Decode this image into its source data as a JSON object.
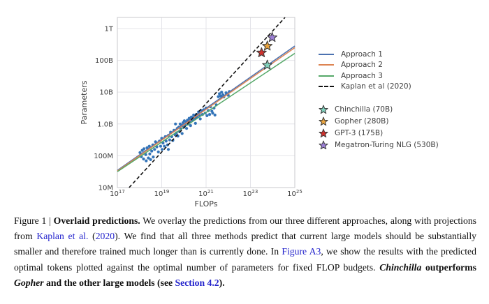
{
  "chart_data": {
    "type": "scatter",
    "title": "",
    "xlabel": "FLOPs",
    "ylabel": "Parameters",
    "x_scale": "log10",
    "y_scale": "log10",
    "xlim_log10": [
      17,
      25
    ],
    "ylim_log10": [
      7,
      12.35
    ],
    "grid": true,
    "legend_position": "right",
    "x_ticks": [
      {
        "log10": 17,
        "base": "10",
        "exp": "17"
      },
      {
        "log10": 19,
        "base": "10",
        "exp": "19"
      },
      {
        "log10": 21,
        "base": "10",
        "exp": "21"
      },
      {
        "log10": 23,
        "base": "10",
        "exp": "23"
      },
      {
        "log10": 25,
        "base": "10",
        "exp": "25"
      }
    ],
    "y_ticks": [
      {
        "log10": 12,
        "label": "1T"
      },
      {
        "log10": 11,
        "label": "100B"
      },
      {
        "log10": 10,
        "label": "10B"
      },
      {
        "log10": 9,
        "label": "1.0B"
      },
      {
        "log10": 8,
        "label": "100M"
      },
      {
        "log10": 7,
        "label": "10M"
      }
    ],
    "series": [
      {
        "name": "Approach 1",
        "type": "line",
        "color": "#4c72b0",
        "points_log10": [
          [
            17,
            7.54
          ],
          [
            25,
            11.45
          ]
        ]
      },
      {
        "name": "Approach 2",
        "type": "line",
        "color": "#dd8452",
        "points_log10": [
          [
            17,
            7.52
          ],
          [
            25,
            11.4
          ]
        ]
      },
      {
        "name": "Approach 3",
        "type": "line",
        "color": "#55a868",
        "points_log10": [
          [
            17,
            7.5
          ],
          [
            25,
            11.22
          ]
        ]
      },
      {
        "name": "Kaplan et al (2020)",
        "type": "dashed-line",
        "color": "#111111",
        "points_log10": [
          [
            17.53,
            7.0
          ],
          [
            24.56,
            12.35
          ]
        ]
      },
      {
        "name": "trained models",
        "type": "scatter",
        "color": "#3374b8",
        "points_log10": [
          [
            18.02,
            8.1
          ],
          [
            18.08,
            7.97
          ],
          [
            18.12,
            8.17
          ],
          [
            18.18,
            7.9
          ],
          [
            18.2,
            8.22
          ],
          [
            18.28,
            8.04
          ],
          [
            18.3,
            7.84
          ],
          [
            18.34,
            8.25
          ],
          [
            18.4,
            7.93
          ],
          [
            18.44,
            8.3
          ],
          [
            18.46,
            8.06
          ],
          [
            18.5,
            7.88
          ],
          [
            18.55,
            8.15
          ],
          [
            18.6,
            8.34
          ],
          [
            18.62,
            7.96
          ],
          [
            18.68,
            8.2
          ],
          [
            18.72,
            8.44
          ],
          [
            18.78,
            8.28
          ],
          [
            18.85,
            8.12
          ],
          [
            18.9,
            8.46
          ],
          [
            18.95,
            8.3
          ],
          [
            19.0,
            8.55
          ],
          [
            19.02,
            8.2
          ],
          [
            19.06,
            8.4
          ],
          [
            19.12,
            8.3
          ],
          [
            19.16,
            8.6
          ],
          [
            19.2,
            8.46
          ],
          [
            19.26,
            8.34
          ],
          [
            19.3,
            8.64
          ],
          [
            19.3,
            8.2
          ],
          [
            19.36,
            8.5
          ],
          [
            19.4,
            8.74
          ],
          [
            19.45,
            8.6
          ],
          [
            19.5,
            8.48
          ],
          [
            19.55,
            8.8
          ],
          [
            19.6,
            8.66
          ],
          [
            19.62,
            9.0
          ],
          [
            19.66,
            8.72
          ],
          [
            19.7,
            8.86
          ],
          [
            19.73,
            8.62
          ],
          [
            19.77,
            8.9
          ],
          [
            19.8,
            8.76
          ],
          [
            19.83,
            9.0
          ],
          [
            19.86,
            8.85
          ],
          [
            19.9,
            8.95
          ],
          [
            19.92,
            8.7
          ],
          [
            19.96,
            9.04
          ],
          [
            20.0,
            8.9
          ],
          [
            20.02,
            9.1
          ],
          [
            20.06,
            8.98
          ],
          [
            20.1,
            9.06
          ],
          [
            20.12,
            8.86
          ],
          [
            20.16,
            9.12
          ],
          [
            20.2,
            9.0
          ],
          [
            20.24,
            9.18
          ],
          [
            20.28,
            9.08
          ],
          [
            20.3,
            8.95
          ],
          [
            20.34,
            9.22
          ],
          [
            20.4,
            9.12
          ],
          [
            20.44,
            9.28
          ],
          [
            20.5,
            9.18
          ],
          [
            20.52,
            9.02
          ],
          [
            20.56,
            9.3
          ],
          [
            20.6,
            9.22
          ],
          [
            20.66,
            9.38
          ],
          [
            20.7,
            9.28
          ],
          [
            20.74,
            9.16
          ],
          [
            20.8,
            9.42
          ],
          [
            20.84,
            9.3
          ],
          [
            20.9,
            9.45
          ],
          [
            20.96,
            9.34
          ],
          [
            21.0,
            9.5
          ],
          [
            21.04,
            9.26
          ],
          [
            21.1,
            9.42
          ],
          [
            21.16,
            9.3
          ],
          [
            21.2,
            9.54
          ],
          [
            21.26,
            9.4
          ],
          [
            21.3,
            9.34
          ],
          [
            21.36,
            9.5
          ],
          [
            21.4,
            9.28
          ],
          [
            21.46,
            9.6
          ],
          [
            21.55,
            9.86
          ],
          [
            21.6,
            9.95
          ],
          [
            21.66,
            9.88
          ],
          [
            21.7,
            10.0
          ],
          [
            21.76,
            9.92
          ],
          [
            21.8,
            9.85
          ],
          [
            21.9,
            9.98
          ],
          [
            22.0,
            9.9
          ],
          [
            22.05,
            10.02
          ]
        ]
      }
    ],
    "markers": [
      {
        "name": "Chinchilla (70B)",
        "color": "#7fd0bc",
        "log10": [
          23.76,
          10.85
        ]
      },
      {
        "name": "Gopher (280B)",
        "color": "#e8a33e",
        "log10": [
          23.76,
          11.45
        ]
      },
      {
        "name": "GPT-3 (175B)",
        "color": "#d0312d",
        "log10": [
          23.5,
          11.24
        ]
      },
      {
        "name": "Megatron-Turing NLG (530B)",
        "color": "#9c7fd6",
        "log10": [
          23.98,
          11.72
        ]
      }
    ]
  },
  "legend": {
    "line_items": [
      {
        "label": "Approach 1",
        "color": "#4c72b0",
        "dash": false
      },
      {
        "label": "Approach 2",
        "color": "#dd8452",
        "dash": false
      },
      {
        "label": "Approach 3",
        "color": "#55a868",
        "dash": false
      },
      {
        "label": "Kaplan et al (2020)",
        "color": "#111111",
        "dash": true
      }
    ],
    "star_items": [
      {
        "label": "Chinchilla (70B)",
        "color": "#7fd0bc"
      },
      {
        "label": "Gopher (280B)",
        "color": "#e8a33e"
      },
      {
        "label": "GPT-3 (175B)",
        "color": "#d0312d"
      },
      {
        "label": "Megatron-Turing NLG (530B)",
        "color": "#9c7fd6"
      }
    ]
  },
  "caption": {
    "runs": [
      {
        "t": "Figure 1 | ",
        "s": "r"
      },
      {
        "t": "Overlaid predictions.",
        "s": "b"
      },
      {
        "t": "  We overlay the predictions from our three different approaches, along with projections from ",
        "s": "r"
      },
      {
        "t": "Kaplan et al.",
        "s": "lk"
      },
      {
        "t": " (",
        "s": "r"
      },
      {
        "t": "2020",
        "s": "lk"
      },
      {
        "t": "). We find that all three methods predict that current large models should be substantially smaller and therefore trained much longer than is currently done. In ",
        "s": "r"
      },
      {
        "t": "Figure A3",
        "s": "lk"
      },
      {
        "t": ", we show the results with the predicted optimal tokens plotted against the optimal number of parameters for fixed FLOP budgets. ",
        "s": "r"
      },
      {
        "t": "Chinchilla",
        "s": "bi"
      },
      {
        "t": " outperforms ",
        "s": "b"
      },
      {
        "t": "Gopher",
        "s": "bi"
      },
      {
        "t": " and the other large models (see ",
        "s": "b"
      },
      {
        "t": "Section 4.2",
        "s": "lkb"
      },
      {
        "t": ").",
        "s": "b"
      }
    ]
  }
}
